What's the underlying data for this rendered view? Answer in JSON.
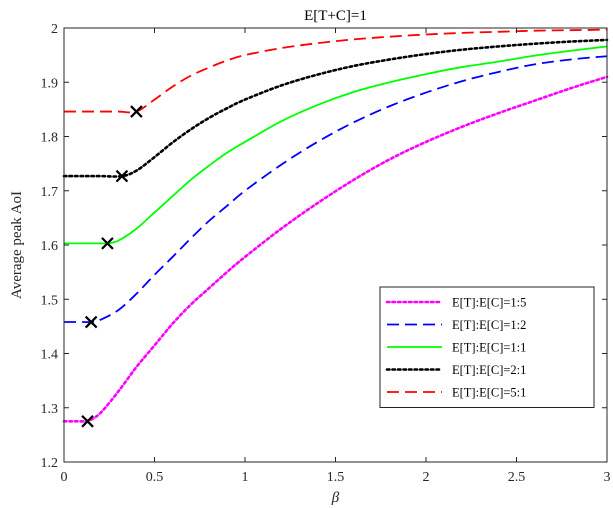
{
  "chart_data": {
    "type": "line",
    "title": "E[T+C]=1",
    "xlabel": "β",
    "ylabel": "Average peak AoI",
    "xlim": [
      0,
      3
    ],
    "ylim": [
      1.2,
      2.0
    ],
    "xticks": [
      0,
      0.5,
      1,
      1.5,
      2,
      2.5,
      3
    ],
    "xtick_labels": [
      "0",
      "0.5",
      "1",
      "1.5",
      "2",
      "2.5",
      "3"
    ],
    "yticks": [
      1.2,
      1.3,
      1.4,
      1.5,
      1.6,
      1.7,
      1.8,
      1.9,
      2.0
    ],
    "ytick_labels": [
      "1.2",
      "1.3",
      "1.4",
      "1.5",
      "1.6",
      "1.7",
      "1.8",
      "1.9",
      "2"
    ],
    "grid": false,
    "box": true,
    "legend_position": "lower-right",
    "series": [
      {
        "name": "E[T]:E[C]=1:5",
        "color": "#ff00ff",
        "style": "dotted",
        "x": [
          0,
          0.05,
          0.1,
          0.13,
          0.2,
          0.3,
          0.4,
          0.5,
          0.6,
          0.7,
          0.8,
          0.9,
          1.0,
          1.2,
          1.4,
          1.6,
          1.8,
          2.0,
          2.2,
          2.4,
          2.6,
          2.8,
          3.0
        ],
        "values": [
          1.275,
          1.275,
          1.275,
          1.275,
          1.29,
          1.33,
          1.375,
          1.415,
          1.455,
          1.49,
          1.52,
          1.55,
          1.578,
          1.63,
          1.677,
          1.72,
          1.758,
          1.79,
          1.818,
          1.843,
          1.866,
          1.889,
          1.91
        ],
        "marker": {
          "x": 0.13,
          "y": 1.275
        }
      },
      {
        "name": "E[T]:E[C]=1:2",
        "color": "#0000ff",
        "style": "dashed",
        "x": [
          0,
          0.1,
          0.15,
          0.2,
          0.3,
          0.4,
          0.5,
          0.6,
          0.7,
          0.8,
          0.9,
          1.0,
          1.2,
          1.4,
          1.6,
          1.8,
          2.0,
          2.2,
          2.4,
          2.6,
          2.8,
          3.0
        ],
        "values": [
          1.458,
          1.458,
          1.458,
          1.462,
          1.48,
          1.51,
          1.545,
          1.578,
          1.612,
          1.644,
          1.672,
          1.7,
          1.748,
          1.79,
          1.826,
          1.856,
          1.881,
          1.902,
          1.919,
          1.933,
          1.942,
          1.948
        ],
        "marker": {
          "x": 0.15,
          "y": 1.458
        }
      },
      {
        "name": "E[T]:E[C]=1:1",
        "color": "#00ff00",
        "style": "solid",
        "x": [
          0,
          0.1,
          0.2,
          0.24,
          0.3,
          0.4,
          0.5,
          0.6,
          0.7,
          0.8,
          0.9,
          1.0,
          1.2,
          1.4,
          1.6,
          1.8,
          2.0,
          2.2,
          2.4,
          2.6,
          2.8,
          3.0
        ],
        "values": [
          1.603,
          1.603,
          1.603,
          1.603,
          1.608,
          1.63,
          1.66,
          1.69,
          1.72,
          1.746,
          1.77,
          1.79,
          1.828,
          1.858,
          1.882,
          1.9,
          1.915,
          1.928,
          1.938,
          1.949,
          1.958,
          1.966
        ],
        "marker": {
          "x": 0.24,
          "y": 1.603
        }
      },
      {
        "name": "E[T]:E[C]=2:1",
        "color": "#000000",
        "style": "dotted",
        "x": [
          0,
          0.1,
          0.2,
          0.32,
          0.4,
          0.5,
          0.6,
          0.7,
          0.8,
          0.9,
          1.0,
          1.2,
          1.4,
          1.6,
          1.8,
          2.0,
          2.2,
          2.4,
          2.6,
          2.8,
          3.0
        ],
        "values": [
          1.727,
          1.727,
          1.727,
          1.727,
          1.737,
          1.762,
          1.789,
          1.813,
          1.834,
          1.852,
          1.868,
          1.894,
          1.914,
          1.93,
          1.942,
          1.952,
          1.96,
          1.966,
          1.971,
          1.975,
          1.978
        ],
        "marker": {
          "x": 0.32,
          "y": 1.727
        }
      },
      {
        "name": "E[T]:E[C]=5:1",
        "color": "#ff0000",
        "style": "dashed",
        "x": [
          0,
          0.1,
          0.2,
          0.3,
          0.4,
          0.5,
          0.6,
          0.7,
          0.8,
          0.9,
          1.0,
          1.2,
          1.4,
          1.6,
          1.8,
          2.0,
          2.2,
          2.4,
          2.6,
          2.8,
          3.0
        ],
        "values": [
          1.846,
          1.846,
          1.846,
          1.846,
          1.846,
          1.868,
          1.892,
          1.912,
          1.927,
          1.94,
          1.95,
          1.963,
          1.972,
          1.979,
          1.984,
          1.988,
          1.991,
          1.993,
          1.995,
          1.996,
          1.997
        ],
        "marker": {
          "x": 0.4,
          "y": 1.846
        }
      }
    ]
  }
}
